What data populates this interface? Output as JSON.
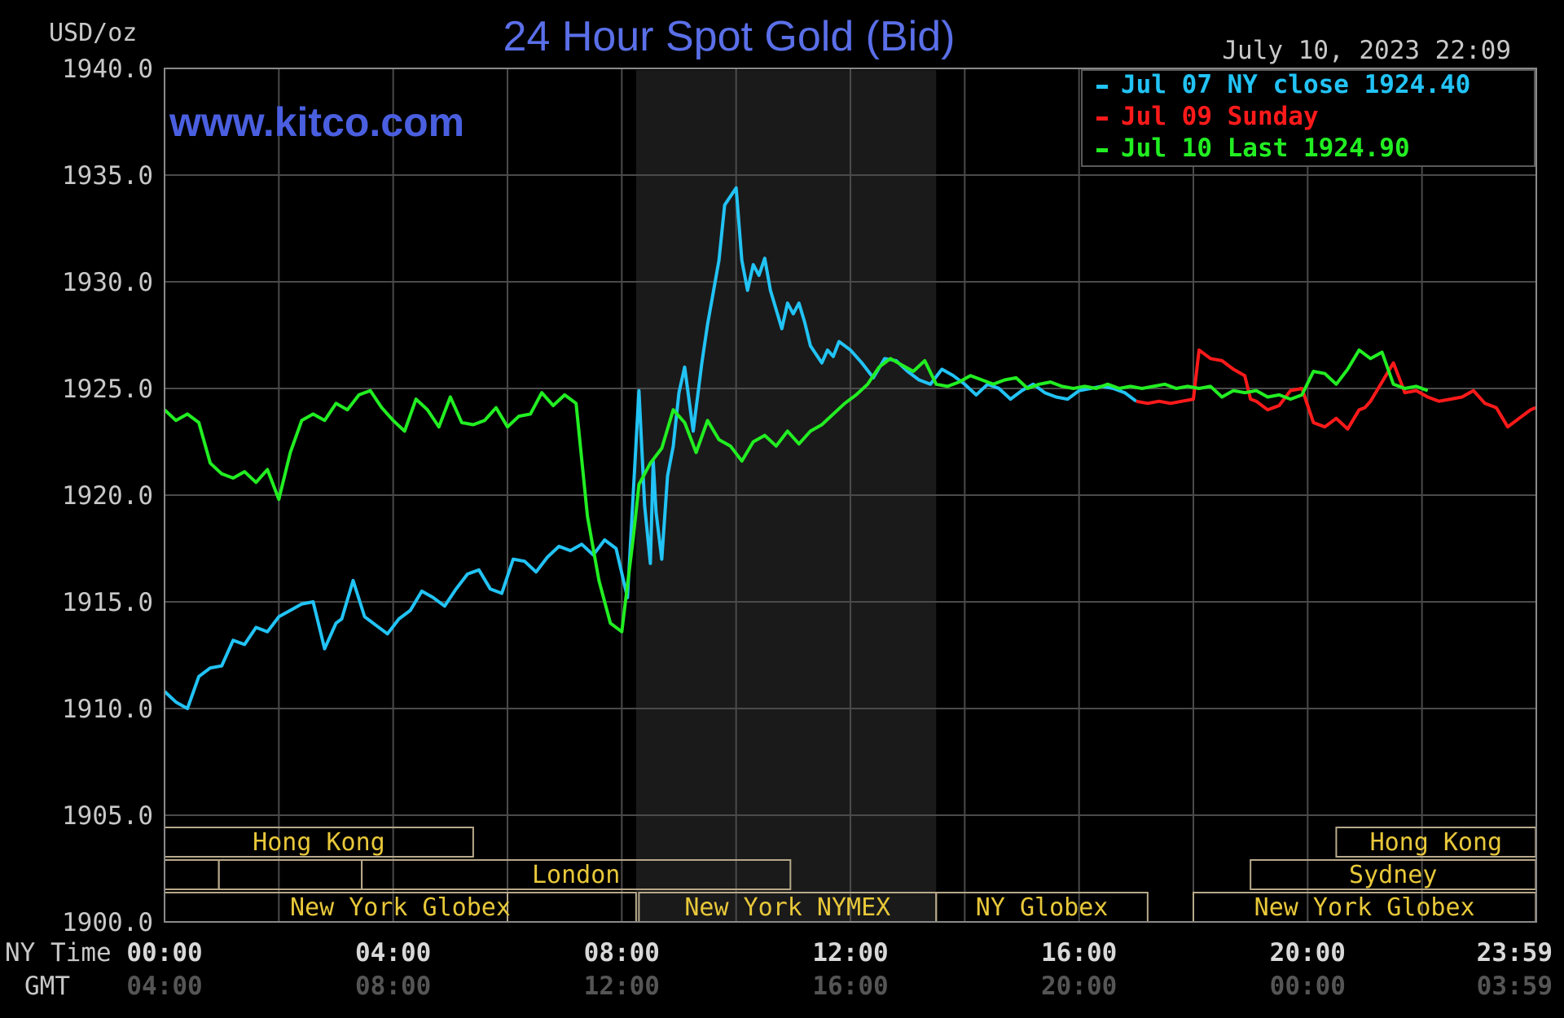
{
  "header": {
    "title": "24 Hour Spot Gold (Bid)",
    "units": "USD/oz",
    "timestamp": "July 10, 2023 22:09",
    "website": "www.kitco.com"
  },
  "legend": [
    {
      "label": "Jul 07 NY close 1924.40",
      "color": "#22c3f5"
    },
    {
      "label": "Jul 09 Sunday",
      "color": "#ff1a1a"
    },
    {
      "label": "Jul 10 Last 1924.90",
      "color": "#22ee22"
    }
  ],
  "axis": {
    "row1_label": "NY Time",
    "row2_label": "GMT",
    "ny_ticks": [
      "00:00",
      "04:00",
      "08:00",
      "12:00",
      "16:00",
      "20:00",
      "23:59"
    ],
    "gmt_ticks": [
      "04:00",
      "08:00",
      "12:00",
      "16:00",
      "20:00",
      "00:00",
      "03:59"
    ]
  },
  "sessions": [
    {
      "label": "Hong Kong",
      "row": 1,
      "start": 0,
      "end": 5.4
    },
    {
      "label": "Hong Kong",
      "row": 1,
      "start": 20.5,
      "end": 23.99
    },
    {
      "label": "",
      "row": 2,
      "start": 0,
      "end": 0.95
    },
    {
      "label": "",
      "row": 2,
      "start": 0.95,
      "end": 3.45
    },
    {
      "label": "London",
      "row": 2,
      "start": 3.45,
      "end": 10.95
    },
    {
      "label": "Sydney",
      "row": 2,
      "start": 19.0,
      "end": 23.99
    },
    {
      "label": "",
      "row": 3,
      "start": 0,
      "end": 6.0
    },
    {
      "label": "New York Globex",
      "row": 3,
      "start": 0,
      "end": 8.25
    },
    {
      "label": "New York NYMEX",
      "row": 3,
      "start": 8.3,
      "end": 13.5
    },
    {
      "label": "NY Globex",
      "row": 3,
      "start": 13.5,
      "end": 17.2
    },
    {
      "label": "New York Globex",
      "row": 3,
      "start": 18.0,
      "end": 23.99
    }
  ],
  "chart_data": {
    "type": "line",
    "xlabel": "NY Time",
    "ylabel": "USD/oz",
    "x_unit": "hour of day (NY time)",
    "xlim": [
      0,
      24
    ],
    "ylim": [
      1900.0,
      1940.0
    ],
    "y_ticks": [
      "1940.0",
      "1935.0",
      "1930.0",
      "1925.0",
      "1920.0",
      "1915.0",
      "1910.0",
      "1905.0",
      "1900.0"
    ],
    "grid": true,
    "legend_position": "top-right",
    "shaded_region": {
      "start": 8.25,
      "end": 13.5
    },
    "series": [
      {
        "name": "Jul 07 NY close 1924.40",
        "color": "#22c3f5",
        "x": [
          0,
          0.2,
          0.4,
          0.6,
          0.8,
          1.0,
          1.2,
          1.4,
          1.6,
          1.8,
          2.0,
          2.2,
          2.4,
          2.6,
          2.8,
          3.0,
          3.1,
          3.3,
          3.5,
          3.7,
          3.9,
          4.1,
          4.3,
          4.5,
          4.7,
          4.9,
          5.1,
          5.3,
          5.5,
          5.7,
          5.9,
          6.1,
          6.3,
          6.5,
          6.7,
          6.9,
          7.1,
          7.3,
          7.5,
          7.7,
          7.9,
          8.1,
          8.3,
          8.4,
          8.5,
          8.55,
          8.6,
          8.7,
          8.8,
          8.9,
          9.0,
          9.1,
          9.25,
          9.4,
          9.5,
          9.6,
          9.7,
          9.8,
          10.0,
          10.1,
          10.2,
          10.3,
          10.4,
          10.5,
          10.6,
          10.8,
          10.9,
          11.0,
          11.1,
          11.2,
          11.3,
          11.4,
          11.5,
          11.6,
          11.7,
          11.8,
          12.0,
          12.2,
          12.4,
          12.6,
          12.8,
          13.0,
          13.2,
          13.4,
          13.6,
          13.8,
          14.0,
          14.2,
          14.4,
          14.6,
          14.8,
          15.0,
          15.2,
          15.4,
          15.6,
          15.8,
          16.0,
          16.2,
          16.4,
          16.6,
          16.8,
          17.0
        ],
        "values": [
          1910.8,
          1910.3,
          1910.0,
          1911.5,
          1911.9,
          1912.0,
          1913.2,
          1913.0,
          1913.8,
          1913.6,
          1914.3,
          1914.6,
          1914.9,
          1915.0,
          1912.8,
          1914.0,
          1914.2,
          1916.0,
          1914.3,
          1913.9,
          1913.5,
          1914.2,
          1914.6,
          1915.5,
          1915.2,
          1914.8,
          1915.6,
          1916.3,
          1916.5,
          1915.6,
          1915.4,
          1917.0,
          1916.9,
          1916.4,
          1917.1,
          1917.6,
          1917.4,
          1917.7,
          1917.2,
          1917.9,
          1917.5,
          1915.2,
          1924.9,
          1919.5,
          1916.8,
          1921.6,
          1919.2,
          1917.0,
          1920.9,
          1922.3,
          1924.8,
          1926.0,
          1923.0,
          1926.2,
          1928.0,
          1929.5,
          1931.0,
          1933.6,
          1934.4,
          1931.0,
          1929.6,
          1930.8,
          1930.3,
          1931.1,
          1929.6,
          1927.8,
          1929.0,
          1928.5,
          1929.0,
          1928.1,
          1927.0,
          1926.6,
          1926.2,
          1926.8,
          1926.5,
          1927.2,
          1926.8,
          1926.2,
          1925.5,
          1926.4,
          1926.3,
          1925.8,
          1925.4,
          1925.2,
          1925.9,
          1925.6,
          1925.2,
          1924.7,
          1925.2,
          1925.0,
          1924.5,
          1924.9,
          1925.2,
          1924.8,
          1924.6,
          1924.5,
          1924.9,
          1925.0,
          1925.1,
          1925.0,
          1924.8,
          1924.4
        ]
      },
      {
        "name": "Jul 09 Sunday",
        "color": "#ff1a1a",
        "x": [
          17.0,
          17.2,
          17.4,
          17.6,
          17.8,
          18.0,
          18.1,
          18.3,
          18.5,
          18.7,
          18.9,
          19.0,
          19.1,
          19.3,
          19.5,
          19.7,
          19.9,
          20.1,
          20.3,
          20.5,
          20.7,
          20.9,
          21.0,
          21.1,
          21.3,
          21.5,
          21.7,
          21.9,
          22.1,
          22.3,
          22.5,
          22.7,
          22.9,
          23.1,
          23.3,
          23.5,
          23.7,
          23.9,
          23.99
        ],
        "values": [
          1924.4,
          1924.3,
          1924.4,
          1924.3,
          1924.4,
          1924.5,
          1926.8,
          1926.4,
          1926.3,
          1925.9,
          1925.6,
          1924.5,
          1924.4,
          1924.0,
          1924.2,
          1924.9,
          1925.0,
          1923.4,
          1923.2,
          1923.6,
          1923.1,
          1924.0,
          1924.1,
          1924.4,
          1925.3,
          1926.2,
          1924.8,
          1924.9,
          1924.6,
          1924.4,
          1924.5,
          1924.6,
          1924.9,
          1924.3,
          1924.1,
          1923.2,
          1923.6,
          1924.0,
          1924.1
        ]
      },
      {
        "name": "Jul 10 Last 1924.90",
        "color": "#22ee22",
        "x": [
          0,
          0.2,
          0.4,
          0.6,
          0.8,
          1.0,
          1.2,
          1.4,
          1.6,
          1.8,
          2.0,
          2.2,
          2.4,
          2.6,
          2.8,
          3.0,
          3.2,
          3.4,
          3.6,
          3.8,
          4.0,
          4.2,
          4.4,
          4.6,
          4.8,
          5.0,
          5.2,
          5.4,
          5.6,
          5.8,
          6.0,
          6.2,
          6.4,
          6.6,
          6.8,
          7.0,
          7.2,
          7.4,
          7.6,
          7.8,
          8.0,
          8.2,
          8.3,
          8.5,
          8.7,
          8.9,
          9.1,
          9.3,
          9.5,
          9.7,
          9.9,
          10.1,
          10.3,
          10.5,
          10.7,
          10.9,
          11.1,
          11.3,
          11.5,
          11.7,
          11.9,
          12.1,
          12.3,
          12.5,
          12.7,
          12.9,
          13.1,
          13.3,
          13.5,
          13.7,
          13.9,
          14.1,
          14.3,
          14.5,
          14.7,
          14.9,
          15.1,
          15.3,
          15.5,
          15.7,
          15.9,
          16.1,
          16.3,
          16.5,
          16.7,
          16.9,
          17.1,
          17.3,
          17.5,
          17.7,
          17.9,
          18.1,
          18.3,
          18.5,
          18.7,
          18.9,
          19.1,
          19.3,
          19.5,
          19.7,
          19.9,
          20.1,
          20.3,
          20.5,
          20.7,
          20.9,
          21.1,
          21.3,
          21.5,
          21.7,
          21.9,
          22.1
        ],
        "values": [
          1924.0,
          1923.5,
          1923.8,
          1923.4,
          1921.5,
          1921.0,
          1920.8,
          1921.1,
          1920.6,
          1921.2,
          1919.8,
          1922.0,
          1923.5,
          1923.8,
          1923.5,
          1924.3,
          1924.0,
          1924.7,
          1924.9,
          1924.1,
          1923.5,
          1923.0,
          1924.5,
          1924.0,
          1923.2,
          1924.6,
          1923.4,
          1923.3,
          1923.5,
          1924.1,
          1923.2,
          1923.7,
          1923.8,
          1924.8,
          1924.2,
          1924.7,
          1924.3,
          1919.0,
          1916.0,
          1914.0,
          1913.6,
          1918.0,
          1920.5,
          1921.5,
          1922.2,
          1924.0,
          1923.4,
          1922.0,
          1923.5,
          1922.6,
          1922.3,
          1921.6,
          1922.5,
          1922.8,
          1922.3,
          1923.0,
          1922.4,
          1923.0,
          1923.3,
          1923.8,
          1924.3,
          1924.7,
          1925.2,
          1926.0,
          1926.4,
          1926.1,
          1925.8,
          1926.3,
          1925.2,
          1925.1,
          1925.3,
          1925.6,
          1925.4,
          1925.2,
          1925.4,
          1925.5,
          1925.0,
          1925.2,
          1925.3,
          1925.1,
          1925.0,
          1925.1,
          1925.0,
          1925.2,
          1925.0,
          1925.1,
          1925.0,
          1925.1,
          1925.2,
          1925.0,
          1925.1,
          1925.0,
          1925.1,
          1924.6,
          1924.9,
          1924.8,
          1924.9,
          1924.6,
          1924.7,
          1924.5,
          1924.7,
          1925.8,
          1925.7,
          1925.2,
          1925.9,
          1926.8,
          1926.4,
          1926.7,
          1925.2,
          1925.0,
          1925.1,
          1924.9
        ]
      }
    ]
  }
}
